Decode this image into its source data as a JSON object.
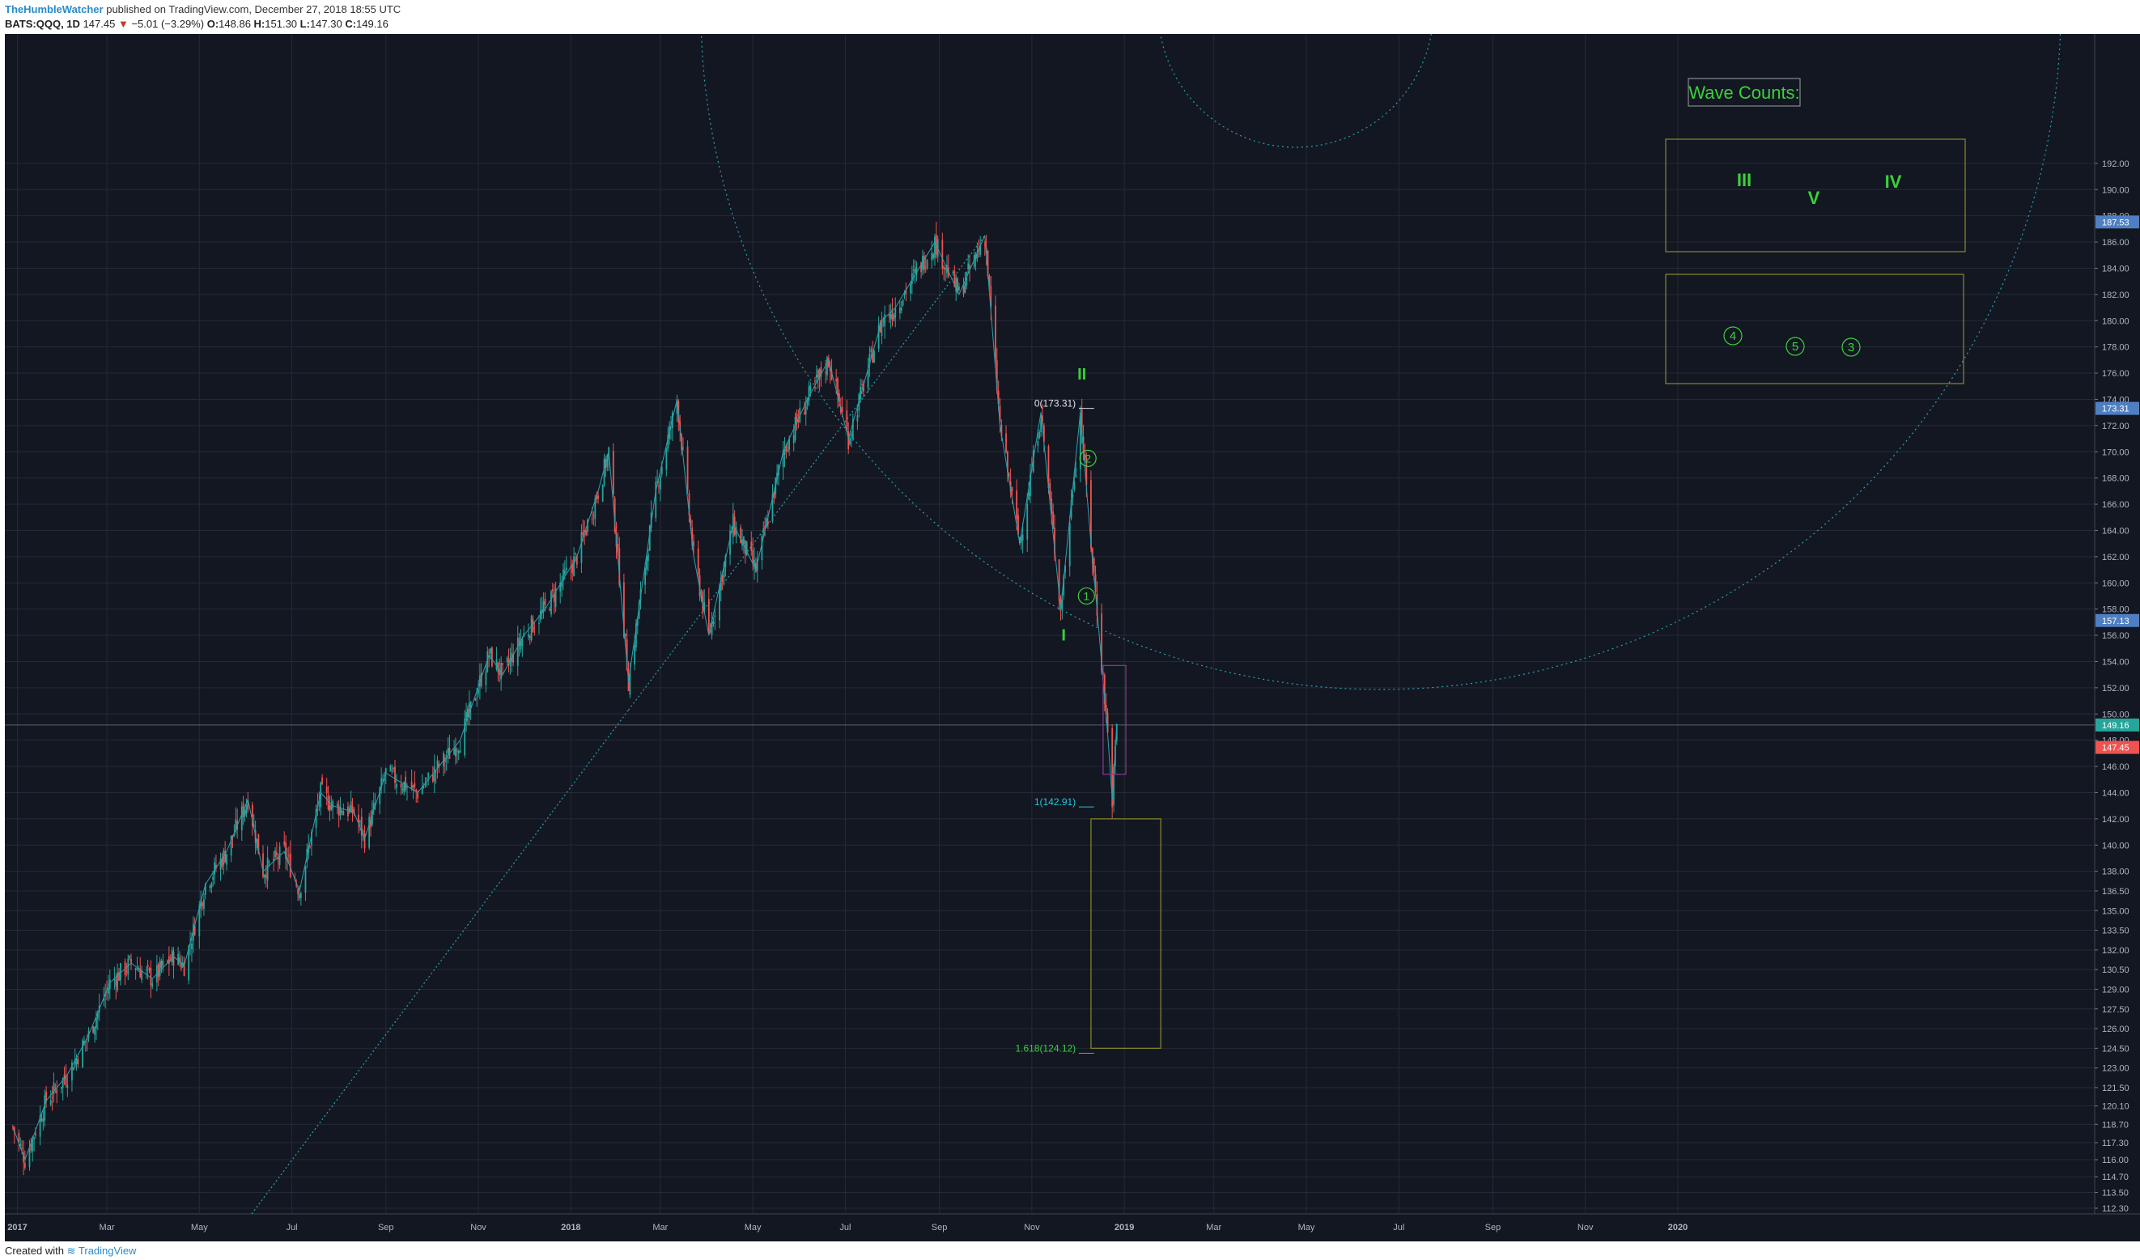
{
  "header": {
    "author": "TheHumbleWatcher",
    "published": "published on TradingView.com, December 27, 2018 18:55 UTC",
    "symbol": "BATS:QQQ, 1D",
    "last": "147.45",
    "down_arrow": "▼",
    "change": "−5.01 (−3.29%)",
    "o_label": "O:",
    "o_value": "148.86",
    "h_label": "H:",
    "h_value": "151.30",
    "l_label": "L:",
    "l_value": "147.30",
    "c_label": "C:",
    "c_value": "149.16"
  },
  "footer": {
    "created_with": "Created with",
    "brand": "TradingView",
    "logo_icon": "tradingview-logo-icon"
  },
  "colors": {
    "background": "#131722",
    "grid": "#252a36",
    "up": "#26a69a",
    "down": "#ef5350",
    "wave_green": "#3ad13a",
    "fib_cyan": "#22c7d6",
    "box_olive": "#8a8a2a",
    "box_purple": "#8e3a8e",
    "trendline": "#2aa1b0"
  },
  "chart_data": {
    "type": "candlestick",
    "symbol": "BATS:QQQ",
    "interval": "1D",
    "x_ticks": [
      "2017",
      "Mar",
      "May",
      "Jul",
      "Sep",
      "Nov",
      "2018",
      "Mar",
      "May",
      "Jul",
      "Sep",
      "Nov",
      "2019",
      "Mar",
      "May",
      "Jul",
      "Sep",
      "Nov",
      "2020"
    ],
    "y_ticks": [
      "192.00",
      "190.00",
      "188.00",
      "186.00",
      "184.00",
      "182.00",
      "180.00",
      "178.00",
      "176.00",
      "174.00",
      "172.00",
      "170.00",
      "168.00",
      "166.00",
      "164.00",
      "162.00",
      "160.00",
      "158.00",
      "156.00",
      "154.00",
      "152.00",
      "150.00",
      "148.00",
      "146.00",
      "144.00",
      "142.00",
      "140.00",
      "138.00",
      "136.50",
      "135.00",
      "133.50",
      "132.00",
      "130.50",
      "129.00",
      "127.50",
      "126.00",
      "124.50",
      "123.00",
      "121.50",
      "120.10",
      "118.70",
      "117.30",
      "116.00",
      "114.70",
      "113.50",
      "112.30"
    ],
    "price_series": [
      {
        "date": "2016-12-29",
        "close": 118.5
      },
      {
        "date": "2017-01-06",
        "close": 116.0
      },
      {
        "date": "2017-01-20",
        "close": 120.5
      },
      {
        "date": "2017-02-03",
        "close": 122.5
      },
      {
        "date": "2017-02-17",
        "close": 125.5
      },
      {
        "date": "2017-03-03",
        "close": 129.5
      },
      {
        "date": "2017-03-17",
        "close": 131.0
      },
      {
        "date": "2017-03-31",
        "close": 129.8
      },
      {
        "date": "2017-04-14",
        "close": 131.5
      },
      {
        "date": "2017-04-21",
        "close": 130.8
      },
      {
        "date": "2017-05-05",
        "close": 137.0
      },
      {
        "date": "2017-05-19",
        "close": 139.5
      },
      {
        "date": "2017-06-02",
        "close": 143.5
      },
      {
        "date": "2017-06-12",
        "close": 138.0
      },
      {
        "date": "2017-06-26",
        "close": 139.5
      },
      {
        "date": "2017-07-06",
        "close": 136.5
      },
      {
        "date": "2017-07-20",
        "close": 144.0
      },
      {
        "date": "2017-07-28",
        "close": 143.0
      },
      {
        "date": "2017-08-11",
        "close": 142.5
      },
      {
        "date": "2017-08-18",
        "close": 140.5
      },
      {
        "date": "2017-09-01",
        "close": 145.5
      },
      {
        "date": "2017-09-22",
        "close": 144.0
      },
      {
        "date": "2017-10-06",
        "close": 146.0
      },
      {
        "date": "2017-10-20",
        "close": 148.0
      },
      {
        "date": "2017-11-08",
        "close": 154.5
      },
      {
        "date": "2017-11-17",
        "close": 153.0
      },
      {
        "date": "2017-12-01",
        "close": 156.0
      },
      {
        "date": "2017-12-15",
        "close": 158.0
      },
      {
        "date": "2018-01-05",
        "close": 162.0
      },
      {
        "date": "2018-01-19",
        "close": 167.0
      },
      {
        "date": "2018-01-26",
        "close": 170.0
      },
      {
        "date": "2018-02-08",
        "close": 152.5
      },
      {
        "date": "2018-02-26",
        "close": 167.0
      },
      {
        "date": "2018-03-12",
        "close": 174.0
      },
      {
        "date": "2018-03-23",
        "close": 162.0
      },
      {
        "date": "2018-04-02",
        "close": 156.0
      },
      {
        "date": "2018-04-18",
        "close": 164.5
      },
      {
        "date": "2018-05-03",
        "close": 161.0
      },
      {
        "date": "2018-05-21",
        "close": 170.0
      },
      {
        "date": "2018-06-06",
        "close": 174.0
      },
      {
        "date": "2018-06-20",
        "close": 177.0
      },
      {
        "date": "2018-07-03",
        "close": 171.0
      },
      {
        "date": "2018-07-25",
        "close": 180.0
      },
      {
        "date": "2018-08-03",
        "close": 181.0
      },
      {
        "date": "2018-08-29",
        "close": 186.0
      },
      {
        "date": "2018-09-14",
        "close": 182.0
      },
      {
        "date": "2018-10-01",
        "close": 186.5
      },
      {
        "date": "2018-10-11",
        "close": 172.0
      },
      {
        "date": "2018-10-24",
        "close": 163.0
      },
      {
        "date": "2018-11-07",
        "close": 173.0
      },
      {
        "date": "2018-11-20",
        "close": 158.0
      },
      {
        "date": "2018-12-03",
        "close": 173.0
      },
      {
        "date": "2018-12-10",
        "close": 163.0
      },
      {
        "date": "2018-12-14",
        "close": 158.0
      },
      {
        "date": "2018-12-21",
        "close": 148.5
      },
      {
        "date": "2018-12-24",
        "close": 143.5
      },
      {
        "date": "2018-12-27",
        "close": 149.16
      }
    ],
    "price_labels": [
      {
        "value": 187.53,
        "text": "187.53",
        "color": "#4f7fc3"
      },
      {
        "value": 173.31,
        "text": "173.31",
        "color": "#4f7fc3"
      },
      {
        "value": 157.13,
        "text": "157.13",
        "color": "#4f7fc3"
      },
      {
        "value": 149.16,
        "text": "149.16",
        "color": "#26a69a"
      },
      {
        "value": 147.45,
        "text": "147.45",
        "color": "#ef5350"
      }
    ],
    "fib_levels": [
      {
        "label": "0(173.31)",
        "value": 173.31,
        "color": "#e0e3eb"
      },
      {
        "label": "1(142.91)",
        "value": 142.91,
        "color": "#22c7d6"
      },
      {
        "label": "1.618(124.12)",
        "value": 124.12,
        "color": "#3ad13a"
      }
    ],
    "wave_labels": [
      {
        "text": "I",
        "date": "2018-11-22",
        "price": 155.6
      },
      {
        "text": "II",
        "date": "2018-12-04",
        "price": 175.5
      }
    ],
    "circled_labels": [
      {
        "text": "1",
        "date": "2018-12-07",
        "price": 159.0
      },
      {
        "text": "2",
        "date": "2018-12-08",
        "price": 169.5
      }
    ],
    "legend_title": "Wave Counts:",
    "legend_top": [
      "III",
      "V",
      "IV"
    ],
    "legend_bottom": [
      "4",
      "5",
      "3"
    ]
  }
}
